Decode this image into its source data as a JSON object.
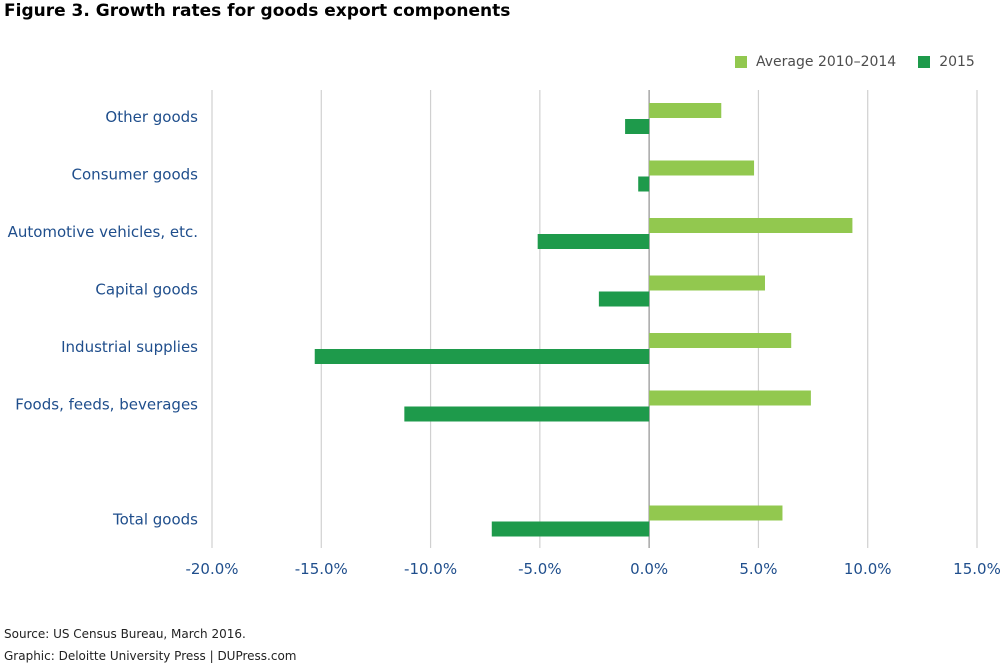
{
  "title": "Figure 3. Growth rates for goods export components",
  "footer": {
    "source": "Source: US Census Bureau, March 2016.",
    "graphic": "Graphic: Deloitte University Press  |  DUPress.com"
  },
  "colors": {
    "avg": "#92c84f",
    "y2015": "#1e9a4b",
    "grid": "#d0d0d0",
    "axis": "#a6a6a6"
  },
  "chart_data": {
    "type": "bar",
    "orientation": "horizontal",
    "categories": [
      "Other goods",
      "Consumer goods",
      "Automotive vehicles, etc.",
      "Capital goods",
      "Industrial supplies",
      "Foods, feeds, beverages",
      "",
      "Total goods"
    ],
    "series": [
      {
        "name": "Average 2010–2014",
        "values": [
          3.3,
          4.8,
          9.3,
          5.3,
          6.5,
          7.4,
          null,
          6.1
        ]
      },
      {
        "name": "2015",
        "values": [
          -1.1,
          -0.5,
          -5.1,
          -2.3,
          -15.3,
          -11.2,
          null,
          -7.2
        ]
      }
    ],
    "xlim": [
      -20,
      15
    ],
    "xticks": [
      "-20.0%",
      "-15.0%",
      "-10.0%",
      "-5.0%",
      "0.0%",
      "5.0%",
      "10.0%",
      "15.0%"
    ],
    "xtick_values": [
      -20,
      -15,
      -10,
      -5,
      0,
      5,
      10,
      15
    ],
    "legend_position": "top-right",
    "grid": true
  }
}
